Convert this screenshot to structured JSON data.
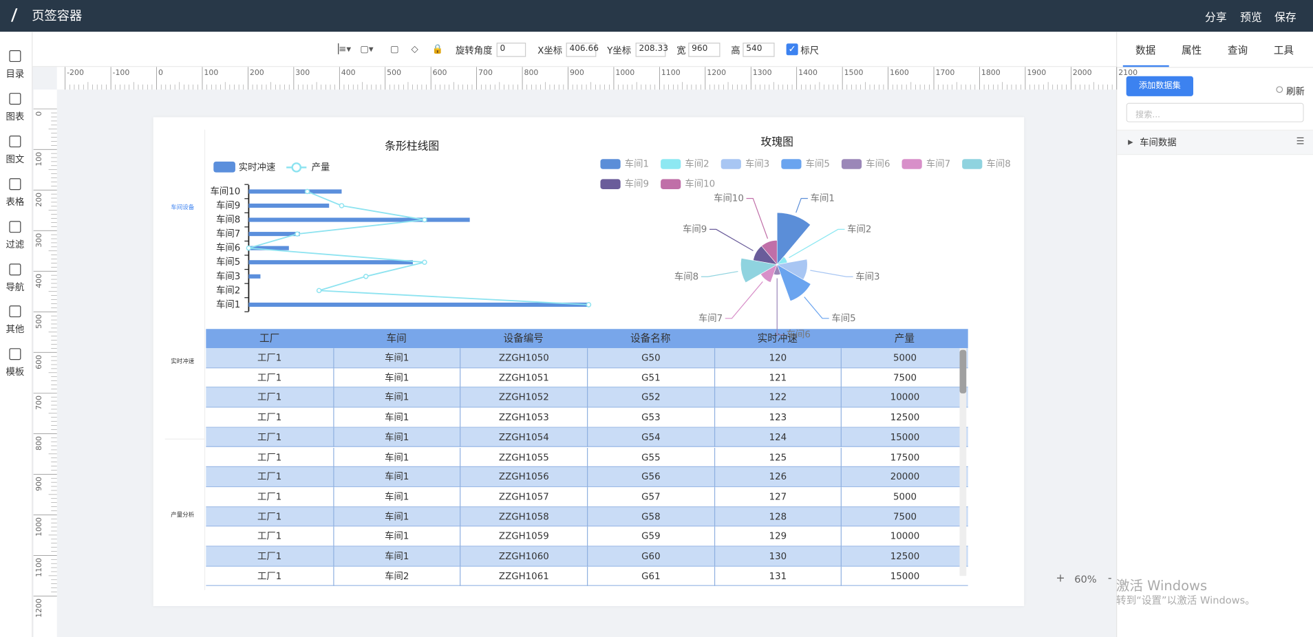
{
  "header": {
    "title": "页签容器",
    "actions": [
      "分享",
      "预览",
      "保存"
    ]
  },
  "sidebar": [
    "目录",
    "图表",
    "图文",
    "表格",
    "过滤",
    "导航",
    "其他",
    "模板"
  ],
  "toolbar": {
    "rotate_label": "旋转角度",
    "rotate": "0",
    "x_label": "X坐标",
    "x": "406.66",
    "y_label": "Y坐标",
    "y": "208.33",
    "w_label": "宽",
    "w": "960",
    "h_label": "高",
    "h": "540",
    "ruler": "标尺"
  },
  "ruler": {
    "top": [
      -200,
      -100,
      0,
      100,
      200,
      300,
      400,
      500,
      600,
      700,
      800,
      900,
      1000,
      1100,
      1200,
      1300,
      1400,
      1500,
      1600,
      1700,
      1800,
      1900,
      2000,
      2100
    ],
    "left": [
      0,
      100,
      200,
      300,
      400,
      500,
      600,
      700,
      800,
      900,
      1000,
      1100,
      1200
    ]
  },
  "page_tabs": [
    "车间设备",
    "实时冲速",
    "产量分析"
  ],
  "charts": [
    {
      "type": "bar",
      "orientation": "horizontal",
      "title": "条形柱线图",
      "categories": [
        "车间1",
        "车间2",
        "车间3",
        "车间5",
        "车间6",
        "车间7",
        "车间8",
        "车间9",
        "车间10"
      ],
      "series": [
        {
          "name": "实时冲速",
          "type": "bar",
          "color": "#5b8fdc",
          "values": [
            406,
            0,
            14,
            196,
            48,
            61,
            264,
            96,
            111
          ]
        },
        {
          "name": "产量",
          "type": "line",
          "color": "#8de3f0",
          "values": [
            406,
            84,
            140,
            210,
            0,
            58,
            210,
            111,
            70
          ]
        }
      ]
    },
    {
      "type": "pie",
      "rose_type": "radius",
      "title": "玫瑰图",
      "categories": [
        "车间1",
        "车间2",
        "车间3",
        "车间5",
        "车间6",
        "车间7",
        "车间8",
        "车间9",
        "车间10"
      ],
      "values": [
        60,
        12,
        35,
        45,
        12,
        22,
        42,
        28,
        28
      ],
      "colors": [
        "#5b8ed8",
        "#8de8f2",
        "#a8c6f3",
        "#6aa4ef",
        "#9b87b8",
        "#d88fc9",
        "#8fd3df",
        "#6a5c9a",
        "#c06fa8"
      ]
    }
  ],
  "table": {
    "columns": [
      "工厂",
      "车间",
      "设备编号",
      "设备名称",
      "实时冲速",
      "产量"
    ],
    "rows": [
      [
        "工厂1",
        "车间1",
        "ZZGH1050",
        "G50",
        120,
        5000
      ],
      [
        "工厂1",
        "车间1",
        "ZZGH1051",
        "G51",
        121,
        7500
      ],
      [
        "工厂1",
        "车间1",
        "ZZGH1052",
        "G52",
        122,
        10000
      ],
      [
        "工厂1",
        "车间1",
        "ZZGH1053",
        "G53",
        123,
        12500
      ],
      [
        "工厂1",
        "车间1",
        "ZZGH1054",
        "G54",
        124,
        15000
      ],
      [
        "工厂1",
        "车间1",
        "ZZGH1055",
        "G55",
        125,
        17500
      ],
      [
        "工厂1",
        "车间1",
        "ZZGH1056",
        "G56",
        126,
        20000
      ],
      [
        "工厂1",
        "车间1",
        "ZZGH1057",
        "G57",
        127,
        5000
      ],
      [
        "工厂1",
        "车间1",
        "ZZGH1058",
        "G58",
        128,
        7500
      ],
      [
        "工厂1",
        "车间1",
        "ZZGH1059",
        "G59",
        129,
        10000
      ],
      [
        "工厂1",
        "车间1",
        "ZZGH1060",
        "G60",
        130,
        12500
      ],
      [
        "工厂1",
        "车间2",
        "ZZGH1061",
        "G61",
        131,
        15000
      ]
    ]
  },
  "panel": {
    "tabs": [
      "数据",
      "属性",
      "查询",
      "工具"
    ],
    "add_button": "添加数据集",
    "refresh": "刷新",
    "search_placeholder": "搜索...",
    "tree": [
      "车间数据"
    ]
  },
  "zoom": {
    "in": "+",
    "level": "60%",
    "out": "-"
  },
  "watermark": [
    "激活 Windows",
    "转到“设置”以激活 Windows。"
  ]
}
